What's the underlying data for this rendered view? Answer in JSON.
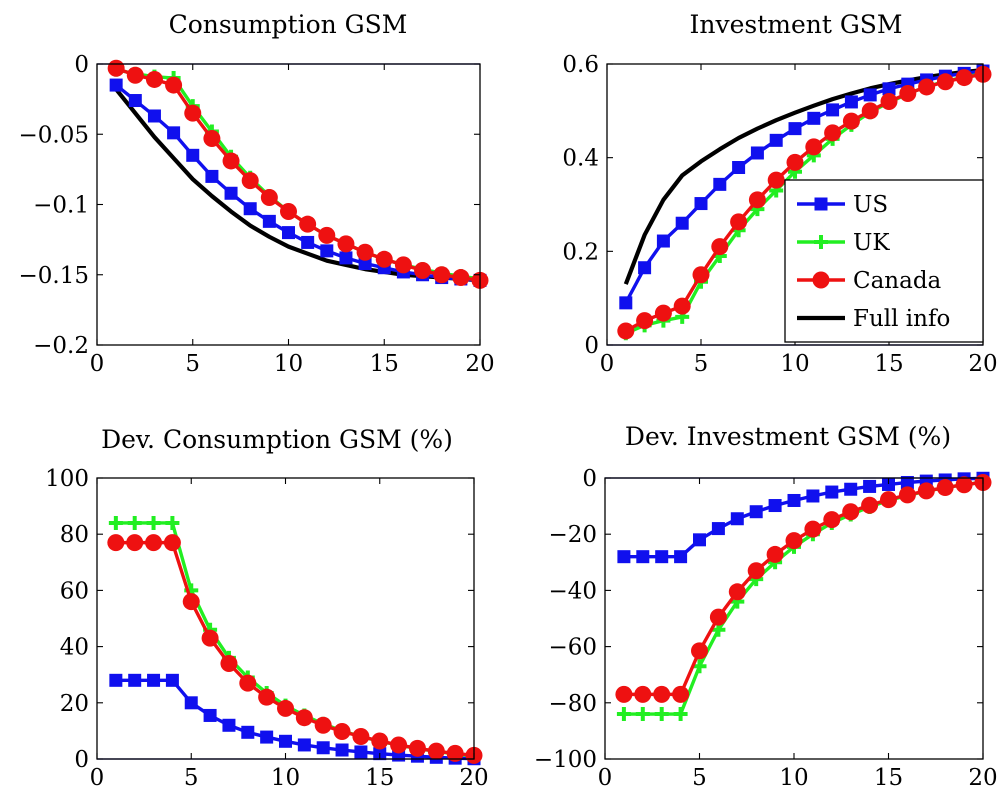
{
  "chart_data": [
    {
      "type": "line",
      "title": "Consumption GSM",
      "xlabel": "",
      "ylabel": "",
      "xlim": [
        0,
        20
      ],
      "ylim": [
        -0.2,
        0
      ],
      "grid": false,
      "xticks": [
        0,
        5,
        10,
        15,
        20
      ],
      "yticks": [
        0,
        -0.05,
        -0.1,
        -0.15,
        -0.2
      ],
      "xtick_labels": [
        "0",
        "5",
        "10",
        "15",
        "20"
      ],
      "ytick_labels": [
        "0",
        "−0.05",
        "−0.1",
        "−0.15",
        "−0.2"
      ],
      "x": [
        1,
        2,
        3,
        4,
        5,
        6,
        7,
        8,
        9,
        10,
        11,
        12,
        13,
        14,
        15,
        16,
        17,
        18,
        19,
        20
      ],
      "series": [
        {
          "key": "us",
          "values": [
            -0.015,
            -0.026,
            -0.037,
            -0.049,
            -0.065,
            -0.08,
            -0.092,
            -0.103,
            -0.112,
            -0.12,
            -0.127,
            -0.133,
            -0.138,
            -0.142,
            -0.145,
            -0.148,
            -0.15,
            -0.152,
            -0.153,
            -0.154
          ]
        },
        {
          "key": "uk",
          "values": [
            -0.004,
            -0.007,
            -0.009,
            -0.01,
            -0.03,
            -0.048,
            -0.066,
            -0.081,
            -0.094,
            -0.105,
            -0.114,
            -0.122,
            -0.128,
            -0.134,
            -0.139,
            -0.143,
            -0.146,
            -0.149,
            -0.151,
            -0.153
          ]
        },
        {
          "key": "canada",
          "values": [
            -0.003,
            -0.008,
            -0.011,
            -0.015,
            -0.035,
            -0.053,
            -0.069,
            -0.083,
            -0.095,
            -0.105,
            -0.114,
            -0.122,
            -0.128,
            -0.134,
            -0.139,
            -0.143,
            -0.147,
            -0.15,
            -0.152,
            -0.154
          ]
        },
        {
          "key": "full",
          "values": [
            -0.018,
            -0.035,
            -0.052,
            -0.067,
            -0.082,
            -0.094,
            -0.105,
            -0.115,
            -0.123,
            -0.13,
            -0.135,
            -0.14,
            -0.143,
            -0.146,
            -0.148,
            -0.15,
            -0.151,
            -0.152,
            -0.153,
            -0.154
          ]
        }
      ]
    },
    {
      "type": "line",
      "title": "Investment GSM",
      "xlabel": "",
      "ylabel": "",
      "xlim": [
        0,
        20
      ],
      "ylim": [
        0,
        0.6
      ],
      "grid": false,
      "xticks": [
        0,
        5,
        10,
        15,
        20
      ],
      "yticks": [
        0,
        0.2,
        0.4,
        0.6
      ],
      "xtick_labels": [
        "0",
        "5",
        "10",
        "15",
        "20"
      ],
      "ytick_labels": [
        "0",
        "0.2",
        "0.4",
        "0.6"
      ],
      "legend_position": "bottom-right",
      "x": [
        1,
        2,
        3,
        4,
        5,
        6,
        7,
        8,
        9,
        10,
        11,
        12,
        13,
        14,
        15,
        16,
        17,
        18,
        19,
        20
      ],
      "series": [
        {
          "key": "us",
          "name": "US",
          "values": [
            0.09,
            0.165,
            0.222,
            0.26,
            0.302,
            0.343,
            0.379,
            0.41,
            0.437,
            0.462,
            0.484,
            0.502,
            0.519,
            0.534,
            0.547,
            0.557,
            0.566,
            0.574,
            0.58,
            0.585
          ]
        },
        {
          "key": "uk",
          "name": "UK",
          "values": [
            0.025,
            0.042,
            0.052,
            0.06,
            0.135,
            0.19,
            0.245,
            0.29,
            0.33,
            0.37,
            0.405,
            0.44,
            0.47,
            0.497,
            0.518,
            0.536,
            0.552,
            0.563,
            0.572,
            0.58
          ]
        },
        {
          "key": "canada",
          "name": "Canada",
          "values": [
            0.03,
            0.052,
            0.068,
            0.083,
            0.15,
            0.21,
            0.263,
            0.31,
            0.352,
            0.39,
            0.423,
            0.453,
            0.478,
            0.5,
            0.52,
            0.537,
            0.551,
            0.562,
            0.571,
            0.578
          ]
        },
        {
          "key": "full",
          "name": "Full info",
          "values": [
            0.13,
            0.235,
            0.31,
            0.362,
            0.392,
            0.418,
            0.442,
            0.462,
            0.48,
            0.496,
            0.511,
            0.525,
            0.537,
            0.548,
            0.557,
            0.565,
            0.572,
            0.578,
            0.583,
            0.587
          ]
        }
      ]
    },
    {
      "type": "line",
      "title": "Dev. Consumption GSM (%)",
      "xlabel": "",
      "ylabel": "",
      "xlim": [
        0,
        20
      ],
      "ylim": [
        0,
        100
      ],
      "grid": false,
      "xticks": [
        0,
        5,
        10,
        15,
        20
      ],
      "yticks": [
        0,
        20,
        40,
        60,
        80,
        100
      ],
      "xtick_labels": [
        "0",
        "5",
        "10",
        "15",
        "20"
      ],
      "ytick_labels": [
        "0",
        "20",
        "40",
        "60",
        "80",
        "100"
      ],
      "x": [
        1,
        2,
        3,
        4,
        5,
        6,
        7,
        8,
        9,
        10,
        11,
        12,
        13,
        14,
        15,
        16,
        17,
        18,
        19,
        20
      ],
      "series": [
        {
          "key": "us",
          "values": [
            28,
            28,
            28,
            28,
            20,
            15.5,
            12,
            9.5,
            7.8,
            6.3,
            5,
            4,
            3.2,
            2.5,
            1.9,
            1.4,
            1,
            0.6,
            0.3,
            0.1
          ]
        },
        {
          "key": "uk",
          "values": [
            84,
            84,
            84,
            84,
            60,
            46,
            36,
            29,
            23.5,
            19,
            15.5,
            12.5,
            10,
            8,
            6.3,
            4.9,
            3.7,
            2.7,
            1.8,
            1
          ]
        },
        {
          "key": "canada",
          "values": [
            77,
            77,
            77,
            77,
            56,
            43,
            34,
            27,
            22,
            18,
            14.7,
            12,
            9.8,
            8,
            6.4,
            5,
            3.8,
            2.8,
            2,
            1.3
          ]
        }
      ]
    },
    {
      "type": "line",
      "title": "Dev. Investment GSM (%)",
      "xlabel": "",
      "ylabel": "",
      "xlim": [
        0,
        20
      ],
      "ylim": [
        -100,
        0
      ],
      "grid": false,
      "xticks": [
        0,
        5,
        10,
        15,
        20
      ],
      "yticks": [
        0,
        -20,
        -40,
        -60,
        -80,
        -100
      ],
      "xtick_labels": [
        "0",
        "5",
        "10",
        "15",
        "20"
      ],
      "ytick_labels": [
        "0",
        "−20",
        "−40",
        "−60",
        "−80",
        "−100"
      ],
      "x": [
        1,
        2,
        3,
        4,
        5,
        6,
        7,
        8,
        9,
        10,
        11,
        12,
        13,
        14,
        15,
        16,
        17,
        18,
        19,
        20
      ],
      "series": [
        {
          "key": "us",
          "values": [
            -28,
            -28,
            -28,
            -28,
            -22,
            -18,
            -14.5,
            -12,
            -9.8,
            -8,
            -6.4,
            -5,
            -4,
            -3,
            -2.3,
            -1.6,
            -1.1,
            -0.7,
            -0.3,
            -0.1
          ]
        },
        {
          "key": "uk",
          "values": [
            -84,
            -84,
            -84,
            -84,
            -67,
            -54,
            -44,
            -36,
            -30,
            -24.5,
            -20,
            -16,
            -13,
            -10.3,
            -8,
            -6.2,
            -4.7,
            -3.4,
            -2.4,
            -1.5
          ]
        },
        {
          "key": "canada",
          "values": [
            -77,
            -77,
            -77,
            -77,
            -61.5,
            -49.5,
            -40.5,
            -33,
            -27.2,
            -22.3,
            -18.2,
            -14.8,
            -12,
            -9.7,
            -7.7,
            -6,
            -4.6,
            -3.4,
            -2.4,
            -1.6
          ]
        }
      ]
    }
  ],
  "style": {
    "colors": {
      "us": "#1010ee",
      "uk": "#22ee22",
      "canada": "#ee1111",
      "full": "#000000",
      "zero_line": "#2020cc"
    },
    "markers": {
      "us": "square",
      "uk": "plus",
      "canada": "circle",
      "full": "none"
    },
    "draw_order": [
      "full",
      "us",
      "uk",
      "canada"
    ]
  }
}
